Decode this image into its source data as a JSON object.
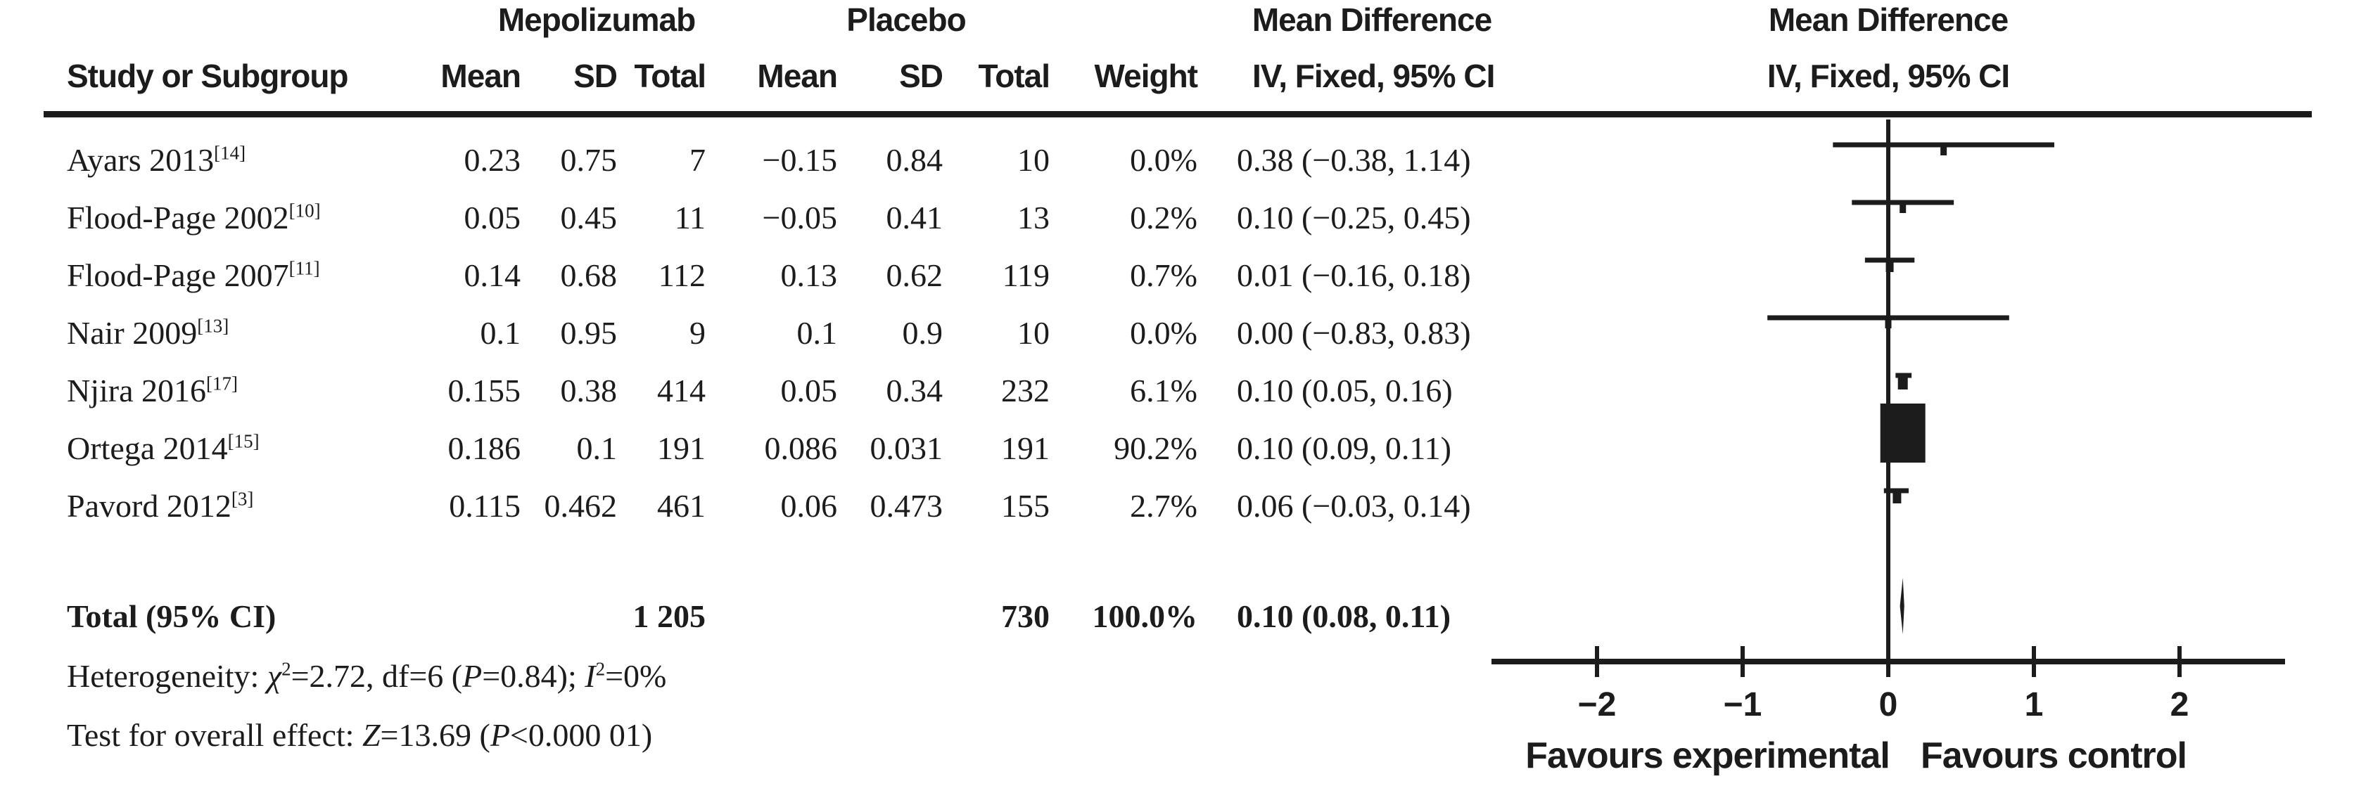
{
  "header": {
    "group_mepolizumab": "Mepolizumab",
    "group_placebo": "Placebo",
    "group_md_left": "Mean Difference",
    "group_md_right": "Mean Difference",
    "col_study": "Study or Subgroup",
    "col_mepo_mean": "Mean",
    "col_mepo_sd": "SD",
    "col_mepo_total": "Total",
    "col_placebo_mean": "Mean",
    "col_placebo_sd": "SD",
    "col_placebo_total": "Total",
    "col_weight": "Weight",
    "col_ci_left": "IV, Fixed, 95% CI",
    "col_ci_right": "IV, Fixed, 95% CI"
  },
  "rows": [
    {
      "study": "Ayars 2013",
      "ref": "[14]",
      "mepo_mean": "0.23",
      "mepo_sd": "0.75",
      "mepo_total": "7",
      "placebo_mean": "−0.15",
      "placebo_sd": "0.84",
      "placebo_total": "10",
      "weight": "0.0%",
      "ci_text": "0.38 (−0.38, 1.14)",
      "est": 0.38,
      "lo": -0.38,
      "hi": 1.14,
      "weight_pct": 0.0
    },
    {
      "study": "Flood-Page 2002",
      "ref": "[10]",
      "mepo_mean": "0.05",
      "mepo_sd": "0.45",
      "mepo_total": "11",
      "placebo_mean": "−0.05",
      "placebo_sd": "0.41",
      "placebo_total": "13",
      "weight": "0.2%",
      "ci_text": "0.10 (−0.25, 0.45)",
      "est": 0.1,
      "lo": -0.25,
      "hi": 0.45,
      "weight_pct": 0.2
    },
    {
      "study": "Flood-Page 2007",
      "ref": "[11]",
      "mepo_mean": "0.14",
      "mepo_sd": "0.68",
      "mepo_total": "112",
      "placebo_mean": "0.13",
      "placebo_sd": "0.62",
      "placebo_total": "119",
      "weight": "0.7%",
      "ci_text": "0.01 (−0.16, 0.18)",
      "est": 0.01,
      "lo": -0.16,
      "hi": 0.18,
      "weight_pct": 0.7
    },
    {
      "study": "Nair 2009",
      "ref": "[13]",
      "mepo_mean": "0.1",
      "mepo_sd": "0.95",
      "mepo_total": "9",
      "placebo_mean": "0.1",
      "placebo_sd": "0.9",
      "placebo_total": "10",
      "weight": "0.0%",
      "ci_text": "0.00 (−0.83, 0.83)",
      "est": 0.0,
      "lo": -0.83,
      "hi": 0.83,
      "weight_pct": 0.0
    },
    {
      "study": "Njira 2016",
      "ref": "[17]",
      "mepo_mean": "0.155",
      "mepo_sd": "0.38",
      "mepo_total": "414",
      "placebo_mean": "0.05",
      "placebo_sd": "0.34",
      "placebo_total": "232",
      "weight": "6.1%",
      "ci_text": "0.10 (0.05, 0.16)",
      "est": 0.1,
      "lo": 0.05,
      "hi": 0.16,
      "weight_pct": 6.1
    },
    {
      "study": "Ortega 2014",
      "ref": "[15]",
      "mepo_mean": "0.186",
      "mepo_sd": "0.1",
      "mepo_total": "191",
      "placebo_mean": "0.086",
      "placebo_sd": "0.031",
      "placebo_total": "191",
      "weight": "90.2%",
      "ci_text": "0.10 (0.09, 0.11)",
      "est": 0.1,
      "lo": 0.09,
      "hi": 0.11,
      "weight_pct": 90.2
    },
    {
      "study": "Pavord 2012",
      "ref": "[3]",
      "mepo_mean": "0.115",
      "mepo_sd": "0.462",
      "mepo_total": "461",
      "placebo_mean": "0.06",
      "placebo_sd": "0.473",
      "placebo_total": "155",
      "weight": "2.7%",
      "ci_text": "0.06 (−0.03, 0.14)",
      "est": 0.06,
      "lo": -0.03,
      "hi": 0.14,
      "weight_pct": 2.7
    }
  ],
  "total": {
    "label": "Total (95% CI)",
    "mepo_total": "1 205",
    "placebo_total": "730",
    "weight": "100.0%",
    "ci_text": "0.10 (0.08, 0.11)",
    "est": 0.1,
    "lo": 0.08,
    "hi": 0.11
  },
  "footer": {
    "heterogeneity_segments": [
      {
        "t": "Heterogeneity: ",
        "s": "n"
      },
      {
        "t": "χ",
        "s": "i"
      },
      {
        "t": "2",
        "s": "sup"
      },
      {
        "t": "=2.72, df=6 (",
        "s": "n"
      },
      {
        "t": "P",
        "s": "i"
      },
      {
        "t": "=0.84); ",
        "s": "n"
      },
      {
        "t": "I",
        "s": "i"
      },
      {
        "t": "2",
        "s": "sup"
      },
      {
        "t": "=0%",
        "s": "n"
      }
    ],
    "overall_effect_segments": [
      {
        "t": "Test for overall effect: ",
        "s": "n"
      },
      {
        "t": "Z",
        "s": "i"
      },
      {
        "t": "=13.69 (",
        "s": "n"
      },
      {
        "t": "P",
        "s": "i"
      },
      {
        "t": "<0.000 01)",
        "s": "n"
      }
    ]
  },
  "axis": {
    "tick_labels": [
      "−2",
      "−1",
      "0",
      "1",
      "2"
    ],
    "tick_values": [
      -2,
      -1,
      0,
      1,
      2
    ],
    "favours_left": "Favours experimental",
    "favours_right": "Favours control"
  },
  "colors": {
    "ink": "#1c1c1c",
    "background": "#ffffff"
  },
  "chart_data": {
    "type": "scatter",
    "subtype": "forest-plot",
    "title": "Mean Difference IV, Fixed, 95% CI",
    "categories": [
      "Ayars 2013",
      "Flood-Page 2002",
      "Flood-Page 2007",
      "Nair 2009",
      "Njira 2016",
      "Ortega 2014",
      "Pavord 2012"
    ],
    "estimates": [
      0.38,
      0.1,
      0.01,
      0.0,
      0.1,
      0.1,
      0.06
    ],
    "ci_low": [
      -0.38,
      -0.25,
      -0.16,
      -0.83,
      0.05,
      0.09,
      -0.03
    ],
    "ci_high": [
      1.14,
      0.45,
      0.18,
      0.83,
      0.16,
      0.11,
      0.14
    ],
    "weights_pct": [
      0.0,
      0.2,
      0.7,
      0.0,
      6.1,
      90.2,
      2.7
    ],
    "pooled": {
      "label": "Total (95% CI)",
      "estimate": 0.1,
      "ci_low": 0.08,
      "ci_high": 0.11,
      "weight_pct": 100.0
    },
    "heterogeneity": {
      "chi2": 2.72,
      "df": 6,
      "P": 0.84,
      "I2_pct": 0
    },
    "overall_effect": {
      "Z": 13.69,
      "P": "<0.000 01"
    },
    "xlabel_left": "Favours experimental",
    "xlabel_right": "Favours control",
    "xlim": [
      -2.72,
      2.72
    ],
    "xticks": [
      -2,
      -1,
      0,
      1,
      2
    ],
    "grid": false,
    "legend": false
  }
}
